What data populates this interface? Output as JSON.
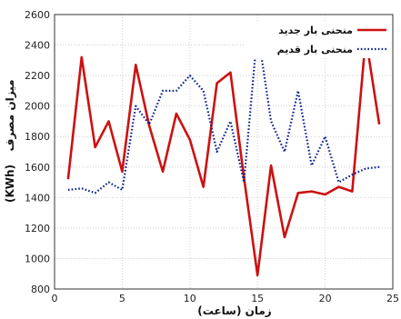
{
  "chart_data": {
    "type": "line",
    "xlabel": "زمان (ساعت)",
    "ylabel": "میزان مصرف",
    "ylabel_unit": "(KWh)",
    "xlim": [
      0,
      25
    ],
    "ylim": [
      800,
      2600
    ],
    "xticks": [
      0,
      5,
      10,
      15,
      20,
      25
    ],
    "yticks": [
      800,
      1000,
      1200,
      1400,
      1600,
      1800,
      2000,
      2200,
      2400,
      2600
    ],
    "grid": true,
    "legend_position": "top-right",
    "x": [
      1,
      2,
      3,
      4,
      5,
      6,
      7,
      8,
      9,
      10,
      11,
      12,
      13,
      14,
      15,
      16,
      17,
      18,
      19,
      20,
      21,
      22,
      23,
      24
    ],
    "series": [
      {
        "name": "منحنی بار جدید",
        "color": "#cc1111",
        "style": "solid",
        "values": [
          1520,
          2320,
          1730,
          1900,
          1570,
          2270,
          1870,
          1570,
          1950,
          1780,
          1470,
          2150,
          2220,
          1530,
          890,
          1610,
          1140,
          1430,
          1440,
          1420,
          1470,
          1440,
          2450,
          1880
        ]
      },
      {
        "name": "منحنی بار قدیم",
        "color": "#0a1f8f",
        "style": "dotted",
        "values": [
          1450,
          1460,
          1430,
          1500,
          1450,
          2000,
          1880,
          2100,
          2100,
          2200,
          2100,
          1700,
          1900,
          1500,
          2500,
          1900,
          1700,
          2100,
          1610,
          1800,
          1500,
          1550,
          1590,
          1600
        ]
      }
    ]
  }
}
